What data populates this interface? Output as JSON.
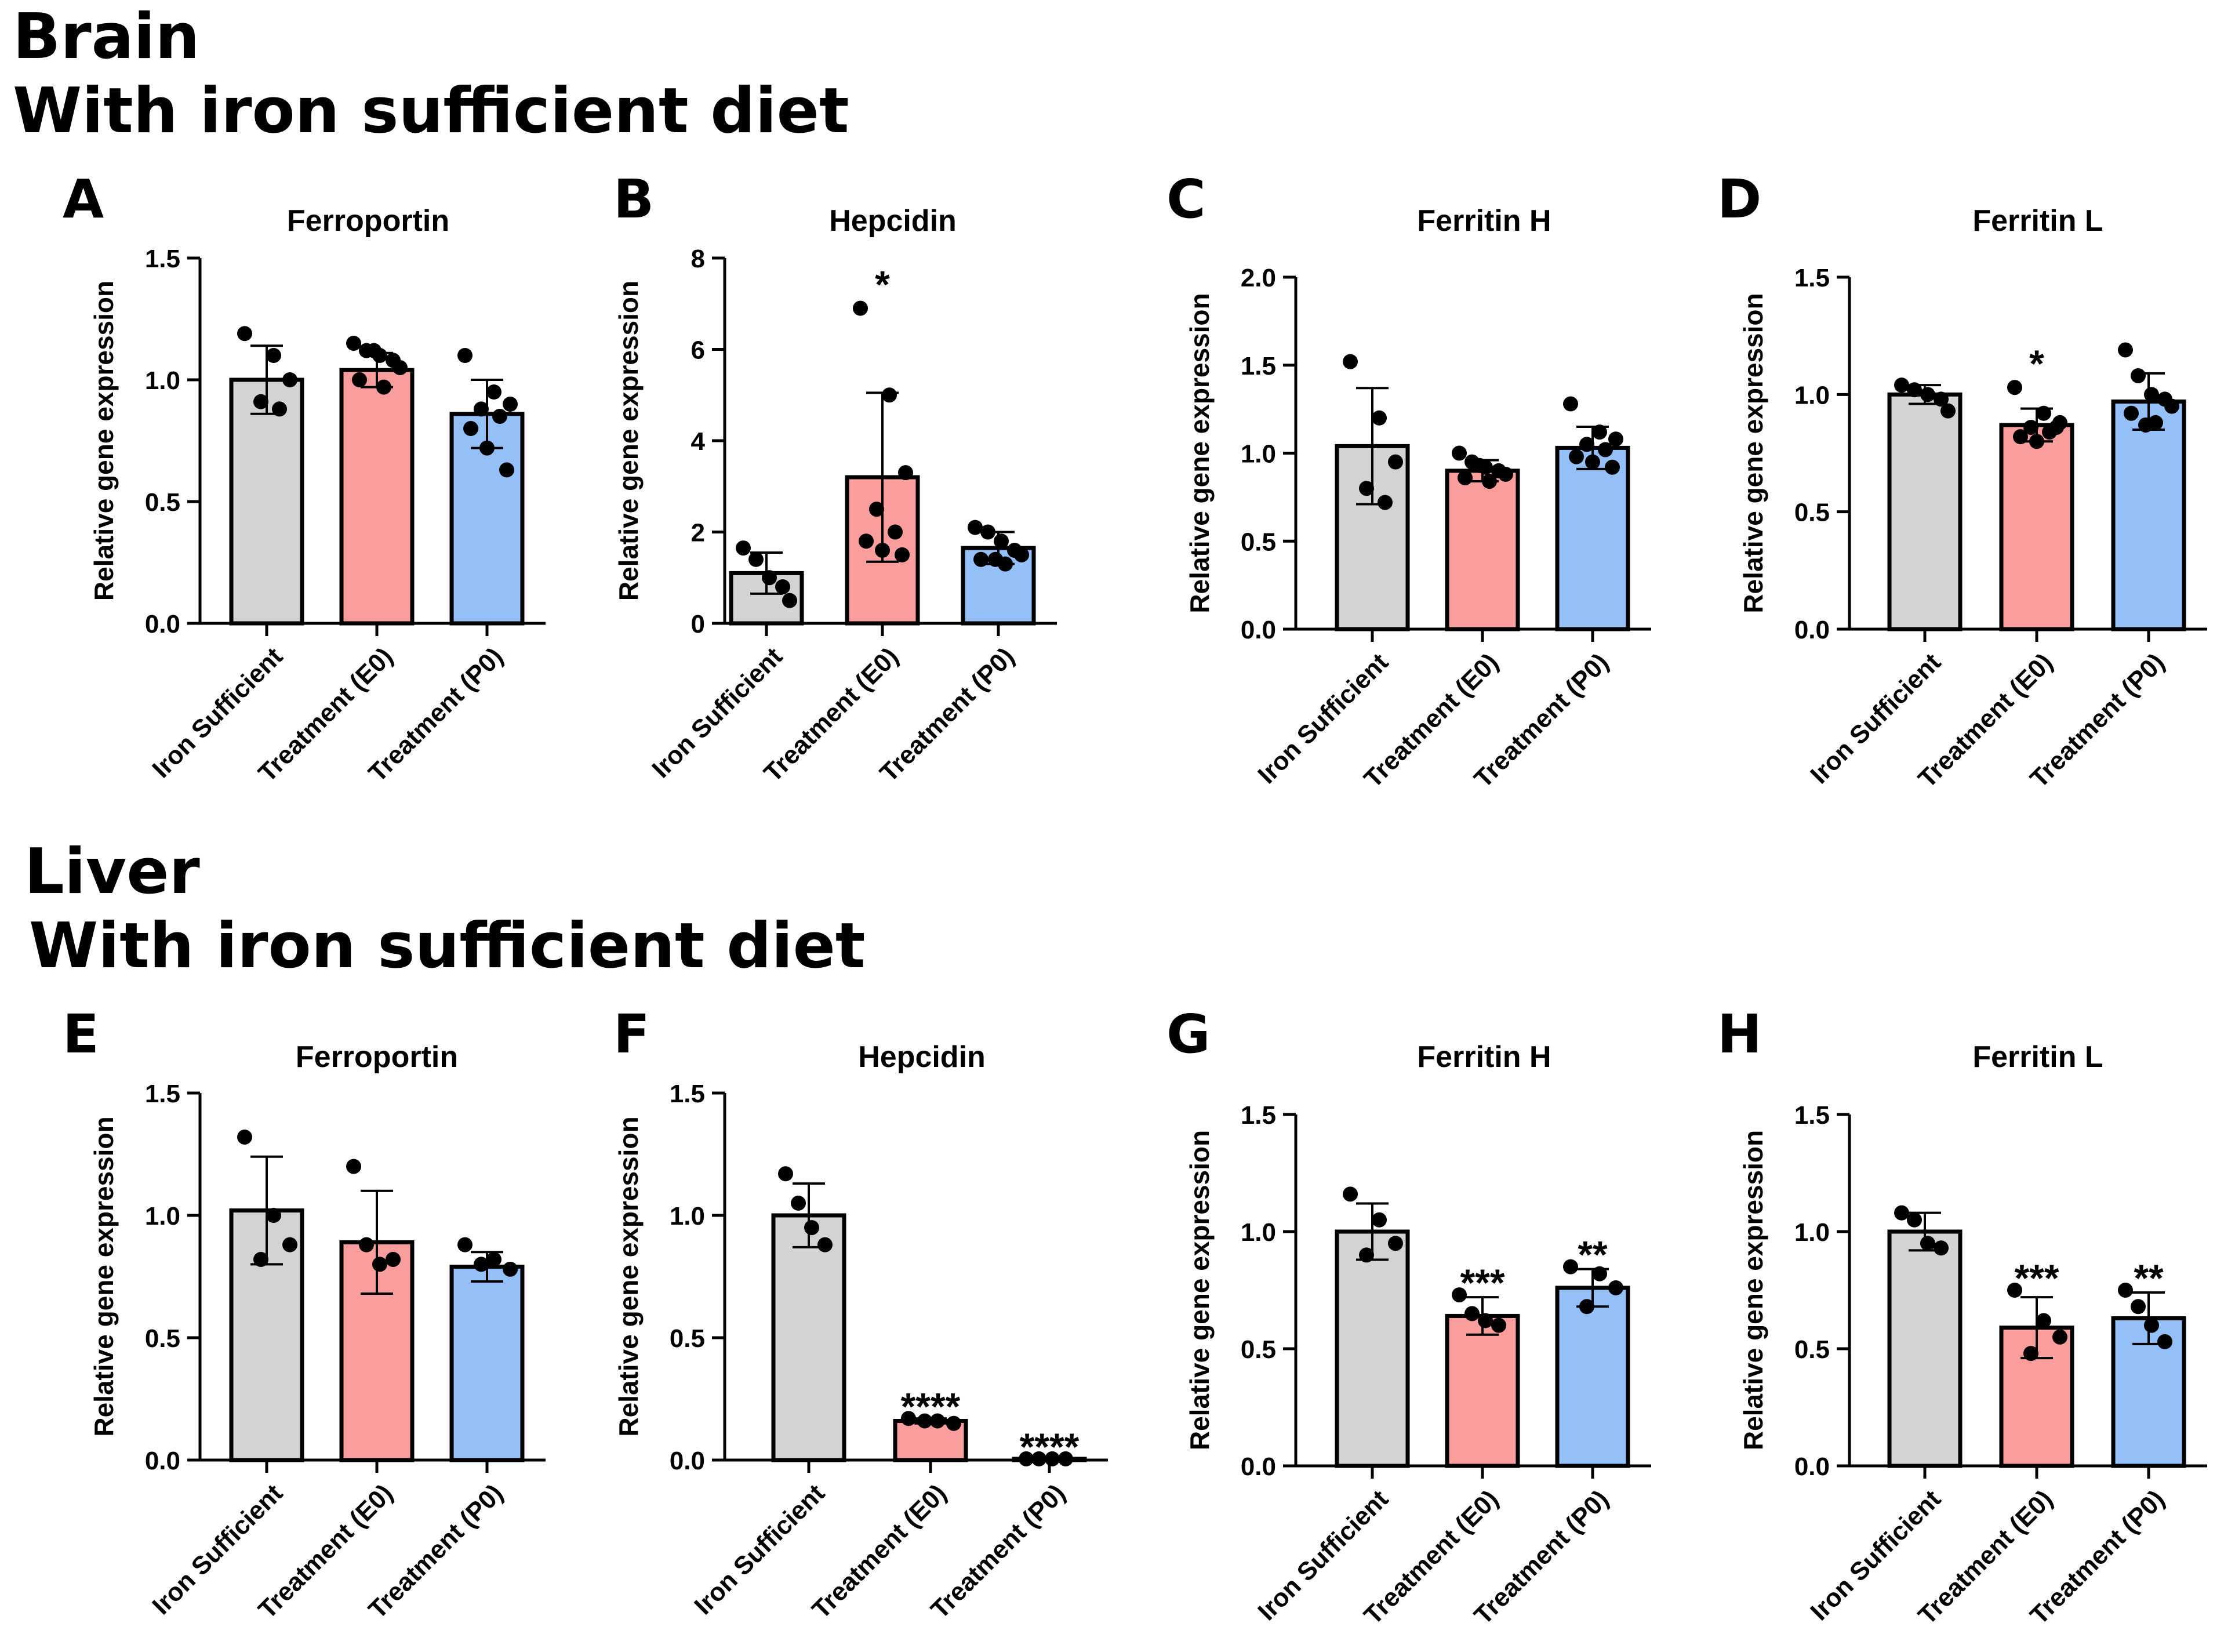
{
  "sections": [
    {
      "name": "Brain",
      "subtitle": "With iron sufficient diet"
    },
    {
      "name": "Liver",
      "subtitle": "With iron sufficient diet"
    }
  ],
  "colors": {
    "iron_sufficient": "#d3d3d3",
    "treatment_e0": "#fa9d9d",
    "treatment_p0": "#95bff7",
    "outline": "#000000"
  },
  "chart_data": [
    {
      "panel": "A",
      "section": "Brain",
      "type": "bar",
      "title": "Ferroportin",
      "ylabel": "Relative gene expression",
      "ylim": [
        0,
        1.5
      ],
      "yticks": [
        "0.0",
        "0.5",
        "1.0",
        "1.5"
      ],
      "categories": [
        "Iron Sufficient",
        "Treatment (E0)",
        "Treatment (P0)"
      ],
      "values": [
        1.0,
        1.04,
        0.86
      ],
      "errors": [
        0.14,
        0.07,
        0.14
      ],
      "points": [
        [
          1.19,
          1.1,
          1.0,
          0.91,
          0.88
        ],
        [
          1.15,
          1.12,
          1.1,
          1.08,
          1.05,
          1.0,
          0.97,
          1.12
        ],
        [
          1.1,
          0.95,
          0.9,
          0.88,
          0.85,
          0.8,
          0.72,
          0.63
        ]
      ],
      "significance": [
        "",
        "",
        ""
      ]
    },
    {
      "panel": "B",
      "section": "Brain",
      "type": "bar",
      "title": "Hepcidin",
      "ylabel": "Relative gene expression",
      "ylim": [
        0,
        8
      ],
      "yticks": [
        "0",
        "2",
        "4",
        "6",
        "8"
      ],
      "categories": [
        "Iron Sufficient",
        "Treatment (E0)",
        "Treatment (P0)"
      ],
      "values": [
        1.1,
        3.2,
        1.65
      ],
      "errors": [
        0.45,
        1.85,
        0.35
      ],
      "points": [
        [
          1.65,
          1.4,
          1.0,
          0.8,
          0.5
        ],
        [
          6.9,
          5.0,
          3.3,
          2.5,
          2.0,
          1.8,
          1.6,
          1.5
        ],
        [
          2.1,
          2.0,
          1.8,
          1.6,
          1.5,
          1.4,
          1.3,
          1.4
        ]
      ],
      "significance": [
        "",
        "*",
        ""
      ]
    },
    {
      "panel": "C",
      "section": "Brain",
      "type": "bar",
      "title": "Ferritin H",
      "ylabel": "Relative gene expression",
      "ylim": [
        0,
        2.0
      ],
      "yticks": [
        "0.0",
        "0.5",
        "1.0",
        "1.5",
        "2.0"
      ],
      "categories": [
        "Iron Sufficient",
        "Treatment (E0)",
        "Treatment (P0)"
      ],
      "values": [
        1.04,
        0.9,
        1.03
      ],
      "errors": [
        0.33,
        0.06,
        0.12
      ],
      "points": [
        [
          1.52,
          1.2,
          0.95,
          0.8,
          0.72
        ],
        [
          1.0,
          0.95,
          0.92,
          0.9,
          0.88,
          0.86,
          0.84,
          0.93
        ],
        [
          1.28,
          1.12,
          1.08,
          1.05,
          1.02,
          0.98,
          0.95,
          0.92
        ]
      ],
      "significance": [
        "",
        "",
        ""
      ]
    },
    {
      "panel": "D",
      "section": "Brain",
      "type": "bar",
      "title": "Ferritin L",
      "ylabel": "Relative gene expression",
      "ylim": [
        0,
        1.5
      ],
      "yticks": [
        "0.0",
        "0.5",
        "1.0",
        "1.5"
      ],
      "categories": [
        "Iron Sufficient",
        "Treatment (E0)",
        "Treatment (P0)"
      ],
      "values": [
        1.0,
        0.87,
        0.97
      ],
      "errors": [
        0.04,
        0.07,
        0.12
      ],
      "points": [
        [
          1.04,
          1.02,
          1.0,
          0.98,
          0.93
        ],
        [
          1.03,
          0.92,
          0.88,
          0.86,
          0.84,
          0.82,
          0.8,
          0.86
        ],
        [
          1.19,
          1.08,
          1.0,
          0.98,
          0.95,
          0.92,
          0.88,
          0.87
        ]
      ],
      "significance": [
        "",
        "*",
        ""
      ]
    },
    {
      "panel": "E",
      "section": "Liver",
      "type": "bar",
      "title": "Ferroportin",
      "ylabel": "Relative gene expression",
      "ylim": [
        0,
        1.5
      ],
      "yticks": [
        "0.0",
        "0.5",
        "1.0",
        "1.5"
      ],
      "categories": [
        "Iron Sufficient",
        "Treatment (E0)",
        "Treatment (P0)"
      ],
      "values": [
        1.02,
        0.89,
        0.79
      ],
      "errors": [
        0.22,
        0.21,
        0.06
      ],
      "points": [
        [
          1.32,
          1.0,
          0.88,
          0.82
        ],
        [
          1.2,
          0.88,
          0.8,
          0.82
        ],
        [
          0.88,
          0.82,
          0.78,
          0.8
        ]
      ],
      "significance": [
        "",
        "",
        ""
      ]
    },
    {
      "panel": "F",
      "section": "Liver",
      "type": "bar",
      "title": "Hepcidin",
      "ylabel": "Relative gene expression",
      "ylim": [
        0,
        1.5
      ],
      "yticks": [
        "0.0",
        "0.5",
        "1.0",
        "1.5"
      ],
      "categories": [
        "Iron Sufficient",
        "Treatment (E0)",
        "Treatment (P0)"
      ],
      "values": [
        1.0,
        0.16,
        0.005
      ],
      "errors": [
        0.13,
        0.01,
        0.0
      ],
      "points": [
        [
          1.17,
          1.05,
          0.95,
          0.88
        ],
        [
          0.17,
          0.16,
          0.15,
          0.16
        ],
        [
          0.005,
          0.005,
          0.005,
          0.005
        ]
      ],
      "significance": [
        "",
        "****",
        "****"
      ]
    },
    {
      "panel": "G",
      "section": "Liver",
      "type": "bar",
      "title": "Ferritin H",
      "ylabel": "Relative gene expression",
      "ylim": [
        0,
        1.5
      ],
      "yticks": [
        "0.0",
        "0.5",
        "1.0",
        "1.5"
      ],
      "categories": [
        "Iron Sufficient",
        "Treatment (E0)",
        "Treatment (P0)"
      ],
      "values": [
        1.0,
        0.64,
        0.76
      ],
      "errors": [
        0.12,
        0.08,
        0.08
      ],
      "points": [
        [
          1.16,
          1.05,
          0.95,
          0.9
        ],
        [
          0.73,
          0.65,
          0.62,
          0.6
        ],
        [
          0.85,
          0.82,
          0.76,
          0.68
        ]
      ],
      "significance": [
        "",
        "***",
        "**"
      ]
    },
    {
      "panel": "H",
      "section": "Liver",
      "type": "bar",
      "title": "Ferritin L",
      "ylabel": "Relative gene expression",
      "ylim": [
        0,
        1.5
      ],
      "yticks": [
        "0.0",
        "0.5",
        "1.0",
        "1.5"
      ],
      "categories": [
        "Iron Sufficient",
        "Treatment (E0)",
        "Treatment (P0)"
      ],
      "values": [
        1.0,
        0.59,
        0.63
      ],
      "errors": [
        0.08,
        0.13,
        0.11
      ],
      "points": [
        [
          1.08,
          1.05,
          0.95,
          0.93
        ],
        [
          0.75,
          0.62,
          0.55,
          0.48
        ],
        [
          0.75,
          0.68,
          0.6,
          0.53
        ]
      ],
      "significance": [
        "",
        "***",
        "**"
      ]
    }
  ]
}
